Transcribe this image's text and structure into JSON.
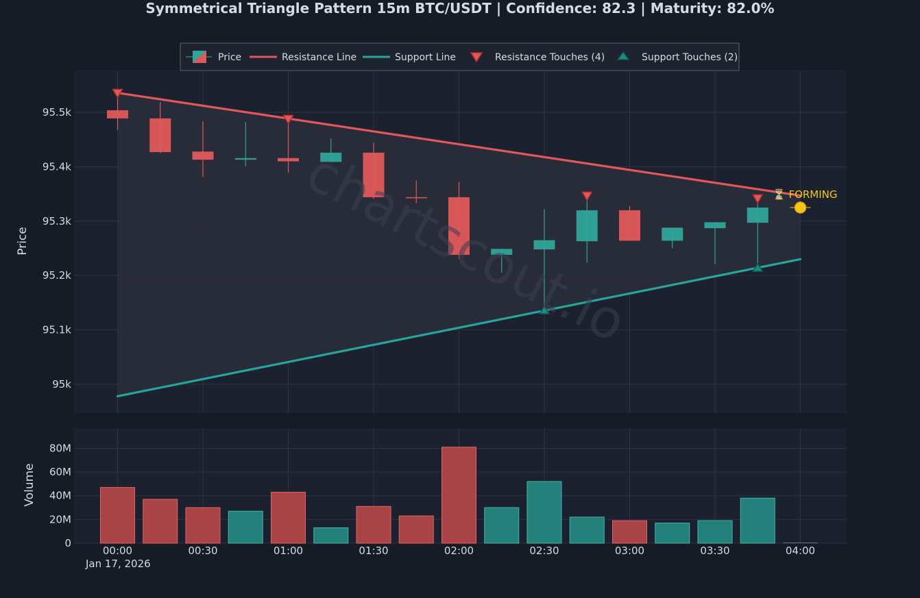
{
  "title": "Symmetrical Triangle Pattern 15m BTC/USDT | Confidence: 82.3 | Maturity: 82.0%",
  "watermark": "chartscout.io",
  "forming_label": "⏳ FORMING",
  "colors": {
    "background": "#161b26",
    "plot_background": "#1c2130",
    "grid": "#2d3342",
    "bullish": "#2fa59a",
    "bearish": "#e05858",
    "resistance": "#e05858",
    "support": "#26a69a",
    "triangle_fill": "#2a2d3a",
    "forming": "#f5c518",
    "text": "#d6dbe3"
  },
  "legend": [
    {
      "key": "price",
      "label": "Price"
    },
    {
      "key": "resistance",
      "label": "Resistance Line"
    },
    {
      "key": "support",
      "label": "Support Line"
    },
    {
      "key": "resistance_touches",
      "label": "Resistance Touches (4)"
    },
    {
      "key": "support_touches",
      "label": "Support Touches (2)"
    }
  ],
  "chart_data": {
    "type": "candlestick",
    "date_label": "Jan 17, 2026",
    "x_ticks": [
      "00:00",
      "00:30",
      "01:00",
      "01:30",
      "02:00",
      "02:30",
      "03:00",
      "03:30",
      "04:00"
    ],
    "price_axis": {
      "label": "Price",
      "ticks": [
        95000,
        95100,
        95200,
        95300,
        95400,
        95500
      ],
      "tick_labels": [
        "95k",
        "95.1k",
        "95.2k",
        "95.3k",
        "95.4k",
        "95.5k"
      ],
      "range": [
        94947,
        95577
      ]
    },
    "volume_axis": {
      "label": "Volume",
      "ticks": [
        0,
        20,
        40,
        60,
        80
      ],
      "tick_labels": [
        "0",
        "20M",
        "40M",
        "60M",
        "80M"
      ],
      "range": [
        0,
        97
      ],
      "unit": "M"
    },
    "candles": [
      {
        "time": "00:00",
        "open": 95504,
        "high": 95537,
        "low": 95468,
        "close": 95489,
        "volume": 47
      },
      {
        "time": "00:15",
        "open": 95489,
        "high": 95519,
        "low": 95425,
        "close": 95427,
        "volume": 37
      },
      {
        "time": "00:30",
        "open": 95428,
        "high": 95484,
        "low": 95381,
        "close": 95413,
        "volume": 30
      },
      {
        "time": "00:45",
        "open": 95413,
        "high": 95482,
        "low": 95401,
        "close": 95416,
        "volume": 27
      },
      {
        "time": "01:00",
        "open": 95416,
        "high": 95486,
        "low": 95389,
        "close": 95410,
        "volume": 43
      },
      {
        "time": "01:15",
        "open": 95409,
        "high": 95452,
        "low": 95409,
        "close": 95426,
        "volume": 13
      },
      {
        "time": "01:30",
        "open": 95426,
        "high": 95445,
        "low": 95341,
        "close": 95344,
        "volume": 31
      },
      {
        "time": "01:45",
        "open": 95344,
        "high": 95375,
        "low": 95333,
        "close": 95343,
        "volume": 23
      },
      {
        "time": "02:00",
        "open": 95344,
        "high": 95372,
        "low": 95230,
        "close": 95238,
        "volume": 81
      },
      {
        "time": "02:15",
        "open": 95238,
        "high": 95249,
        "low": 95205,
        "close": 95249,
        "volume": 30
      },
      {
        "time": "02:30",
        "open": 95248,
        "high": 95322,
        "low": 95137,
        "close": 95265,
        "volume": 52
      },
      {
        "time": "02:45",
        "open": 95263,
        "high": 95345,
        "low": 95224,
        "close": 95320,
        "volume": 22
      },
      {
        "time": "03:00",
        "open": 95320,
        "high": 95328,
        "low": 95265,
        "close": 95264,
        "volume": 19
      },
      {
        "time": "03:15",
        "open": 95264,
        "high": 95288,
        "low": 95250,
        "close": 95288,
        "volume": 17
      },
      {
        "time": "03:30",
        "open": 95287,
        "high": 95297,
        "low": 95221,
        "close": 95298,
        "volume": 19
      },
      {
        "time": "03:45",
        "open": 95297,
        "high": 95340,
        "low": 95213,
        "close": 95325,
        "volume": 38
      },
      {
        "time": "04:00",
        "open": null,
        "high": null,
        "low": null,
        "close": null,
        "volume": 0
      }
    ],
    "resistance_line": {
      "start": {
        "time": "00:00",
        "price": 95536
      },
      "end": {
        "time": "04:00",
        "price": 95347
      }
    },
    "support_line": {
      "start": {
        "time": "00:00",
        "price": 94978
      },
      "end": {
        "time": "04:00",
        "price": 95230
      }
    },
    "resistance_touches": [
      {
        "time": "00:00",
        "price": 95535
      },
      {
        "time": "01:00",
        "price": 95487
      },
      {
        "time": "02:45",
        "price": 95346
      },
      {
        "time": "03:45",
        "price": 95341
      }
    ],
    "support_touches": [
      {
        "time": "02:30",
        "price": 95136
      },
      {
        "time": "03:45",
        "price": 95214
      }
    ],
    "forming_point": {
      "time": "04:00",
      "price": 95325
    }
  }
}
